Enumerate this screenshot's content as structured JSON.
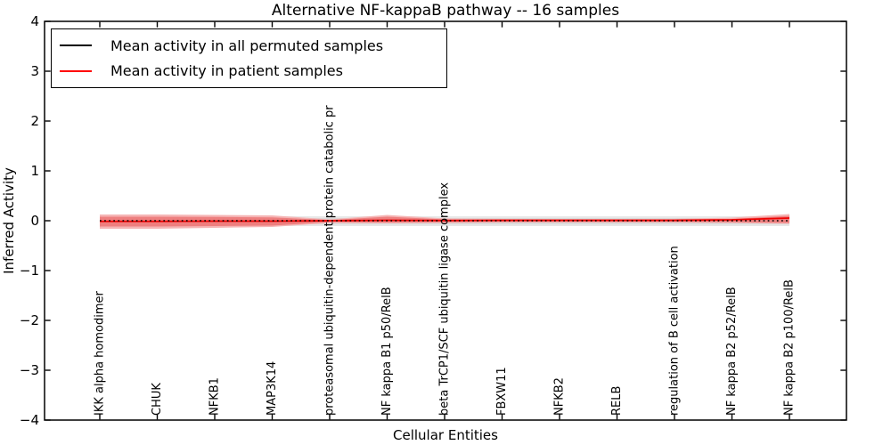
{
  "chart_data": {
    "type": "line",
    "title": "Alternative NF-kappaB pathway -- 16 samples",
    "xlabel": "Cellular Entities",
    "ylabel": "Inferred Activity",
    "ylim": [
      -4,
      4
    ],
    "ytick_labels": [
      "4",
      "3",
      "2",
      "1",
      "0",
      "−1",
      "−2",
      "−3",
      "−4"
    ],
    "ytick_values": [
      4,
      3,
      2,
      1,
      0,
      -1,
      -2,
      -3,
      -4
    ],
    "grid": false,
    "legend_position": "upper left",
    "categories": [
      "IKK alpha homodimer",
      "CHUK",
      "NFKB1",
      "MAP3K14",
      "proteasomal ubiquitin-dependent protein catabolic pr",
      "NF kappa B1 p50/RelB",
      "beta TrCP1/SCF ubiquitin ligase complex",
      "FBXW11",
      "NFKB2",
      "RELB",
      "regulation of B cell activation",
      "NF kappa B2 p52/RelB",
      "NF kappa B2 p100/RelB"
    ],
    "legend": [
      {
        "label": "Mean activity in all permuted samples",
        "color": "#000000"
      },
      {
        "label": "Mean activity in patient samples",
        "color": "#ff0000"
      }
    ],
    "series": [
      {
        "name": "Mean activity in all permuted samples",
        "color": "#000000",
        "style": "dotted",
        "values": [
          0,
          0,
          0,
          0,
          0,
          0,
          0,
          0,
          0,
          0,
          0,
          0,
          0
        ]
      },
      {
        "name": "Mean activity in patient samples",
        "color": "#f00000",
        "style": "solid",
        "values": [
          -0.013,
          -0.013,
          -0.009,
          -0.009,
          0.0,
          0.009,
          0.004,
          0.009,
          0.009,
          0.009,
          0.009,
          0.018,
          0.054
        ]
      }
    ],
    "bands": [
      {
        "name": "permuted-band-outer",
        "color": "#e7e7e7",
        "upper": [
          0.089,
          0.089,
          0.089,
          0.089,
          0.089,
          0.089,
          0.089,
          0.089,
          0.089,
          0.089,
          0.089,
          0.089,
          0.089
        ],
        "lower": [
          -0.107,
          -0.107,
          -0.107,
          -0.107,
          -0.107,
          -0.107,
          -0.107,
          -0.107,
          -0.107,
          -0.107,
          -0.107,
          -0.107,
          -0.107
        ]
      },
      {
        "name": "permuted-band-inner",
        "color": "#dadada",
        "upper": [
          0.054,
          0.054,
          0.054,
          0.054,
          0.054,
          0.054,
          0.054,
          0.054,
          0.054,
          0.054,
          0.054,
          0.054,
          0.054
        ],
        "lower": [
          -0.071,
          -0.071,
          -0.071,
          -0.071,
          -0.071,
          -0.071,
          -0.071,
          -0.071,
          -0.071,
          -0.071,
          -0.071,
          -0.071,
          -0.071
        ]
      },
      {
        "name": "patient-band-outer",
        "color": "#f5b5b5",
        "upper": [
          0.125,
          0.125,
          0.116,
          0.107,
          0.027,
          0.116,
          0.045,
          0.039,
          0.036,
          0.036,
          0.039,
          0.063,
          0.134
        ],
        "lower": [
          -0.161,
          -0.161,
          -0.143,
          -0.125,
          -0.045,
          -0.054,
          -0.045,
          -0.036,
          -0.036,
          -0.036,
          -0.036,
          -0.045,
          -0.063
        ]
      },
      {
        "name": "patient-band-inner",
        "color": "#ee7f7f",
        "upper": [
          0.08,
          0.08,
          0.075,
          0.067,
          0.013,
          0.08,
          0.027,
          0.022,
          0.021,
          0.021,
          0.022,
          0.036,
          0.098
        ],
        "lower": [
          -0.116,
          -0.116,
          -0.107,
          -0.098,
          -0.027,
          -0.036,
          -0.03,
          -0.025,
          -0.024,
          -0.024,
          -0.025,
          -0.032,
          -0.045
        ]
      }
    ]
  }
}
